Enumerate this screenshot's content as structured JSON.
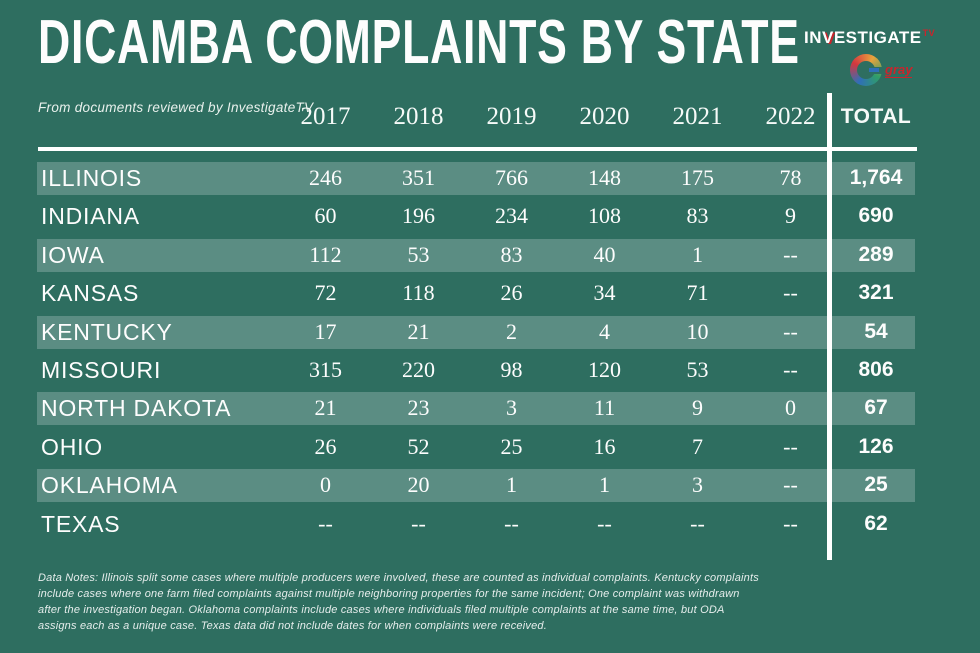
{
  "title": "DICAMBA COMPLAINTS BY STATE",
  "subtitle": "From documents reviewed by InvestigateTV",
  "logo": {
    "part1": "IN",
    "part2": "V",
    "part3": "ESTIGATE",
    "tv": "TV",
    "gray": "gray"
  },
  "colors": {
    "background": "#2e6e60",
    "row_highlight": "rgba(255,255,255,0.22)",
    "text": "#ffffff",
    "accent_red": "#c9252c"
  },
  "chart_data": {
    "type": "table",
    "title": "DICAMBA COMPLAINTS BY STATE",
    "columns": [
      "2017",
      "2018",
      "2019",
      "2020",
      "2021",
      "2022",
      "TOTAL"
    ],
    "rows": [
      {
        "state": "ILLINOIS",
        "values": [
          "246",
          "351",
          "766",
          "148",
          "175",
          "78"
        ],
        "total": "1,764",
        "highlight": true
      },
      {
        "state": "INDIANA",
        "values": [
          "60",
          "196",
          "234",
          "108",
          "83",
          "9"
        ],
        "total": "690",
        "highlight": false
      },
      {
        "state": "IOWA",
        "values": [
          "112",
          "53",
          "83",
          "40",
          "1",
          "--"
        ],
        "total": "289",
        "highlight": true
      },
      {
        "state": "KANSAS",
        "values": [
          "72",
          "118",
          "26",
          "34",
          "71",
          "--"
        ],
        "total": "321",
        "highlight": false
      },
      {
        "state": "KENTUCKY",
        "values": [
          "17",
          "21",
          "2",
          "4",
          "10",
          "--"
        ],
        "total": "54",
        "highlight": true
      },
      {
        "state": "MISSOURI",
        "values": [
          "315",
          "220",
          "98",
          "120",
          "53",
          "--"
        ],
        "total": "806",
        "highlight": false
      },
      {
        "state": "NORTH DAKOTA",
        "values": [
          "21",
          "23",
          "3",
          "11",
          "9",
          "0"
        ],
        "total": "67",
        "highlight": true
      },
      {
        "state": "OHIO",
        "values": [
          "26",
          "52",
          "25",
          "16",
          "7",
          "--"
        ],
        "total": "126",
        "highlight": false
      },
      {
        "state": "OKLAHOMA",
        "values": [
          "0",
          "20",
          "1",
          "1",
          "3",
          "--"
        ],
        "total": "25",
        "highlight": true
      },
      {
        "state": "TEXAS",
        "values": [
          "--",
          "--",
          "--",
          "--",
          "--",
          "--"
        ],
        "total": "62",
        "highlight": false
      }
    ]
  },
  "notes": "Data Notes: Illinois split some cases where multiple producers were involved, these are counted as individual complaints. Kentucky complaints include cases where one farm filed complaints against multiple neighboring properties for the same incident; One complaint was withdrawn after the investigation began. Oklahoma complaints include cases where individuals filed multiple complaints at the same time, but ODA assigns each as a unique case. Texas data did not include dates for when complaints were received."
}
